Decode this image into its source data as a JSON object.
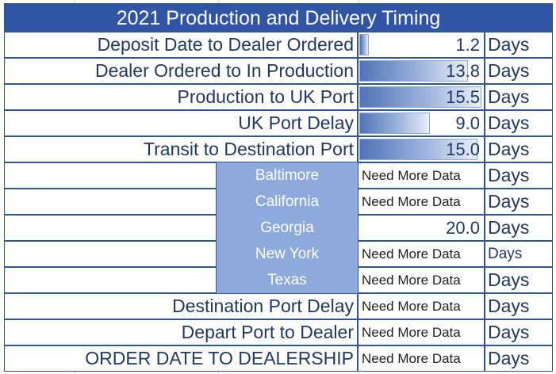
{
  "title": "2021 Production and Delivery Timing",
  "rows": [
    {
      "label": "Deposit Date to Dealer Ordered",
      "value": "1.2",
      "unit": "Days",
      "bar_fraction": 0.08
    },
    {
      "label": "Dealer Ordered to In Production",
      "value": "13.8",
      "unit": "Days",
      "bar_fraction": 0.89
    },
    {
      "label": "Production to UK Port",
      "value": "15.5",
      "unit": "Days",
      "bar_fraction": 1.0
    },
    {
      "label": "UK Port Delay",
      "value": "9.0",
      "unit": "Days",
      "bar_fraction": 0.58
    },
    {
      "label": "Transit to Destination Port",
      "value": "15.0",
      "unit": "Days",
      "bar_fraction": 0.97
    }
  ],
  "regions": [
    {
      "name": "Baltimore",
      "value": "Need More Data",
      "unit": "Days"
    },
    {
      "name": "California",
      "value": "Need More Data",
      "unit": "Days"
    },
    {
      "name": "Georgia",
      "value": "20.0",
      "unit": "Days"
    },
    {
      "name": "New York",
      "value": "Need More Data",
      "unit": "Days"
    },
    {
      "name": "Texas",
      "value": "Need More Data",
      "unit": "Days"
    }
  ],
  "footer_rows": [
    {
      "label": "Destination Port Delay",
      "value": "Need More Data",
      "unit": "Days"
    },
    {
      "label": "Depart Port to Dealer",
      "value": "Need More Data",
      "unit": "Days"
    },
    {
      "label": "ORDER DATE TO DEALERSHIP",
      "value": "Need More Data",
      "unit": "Days"
    }
  ]
}
